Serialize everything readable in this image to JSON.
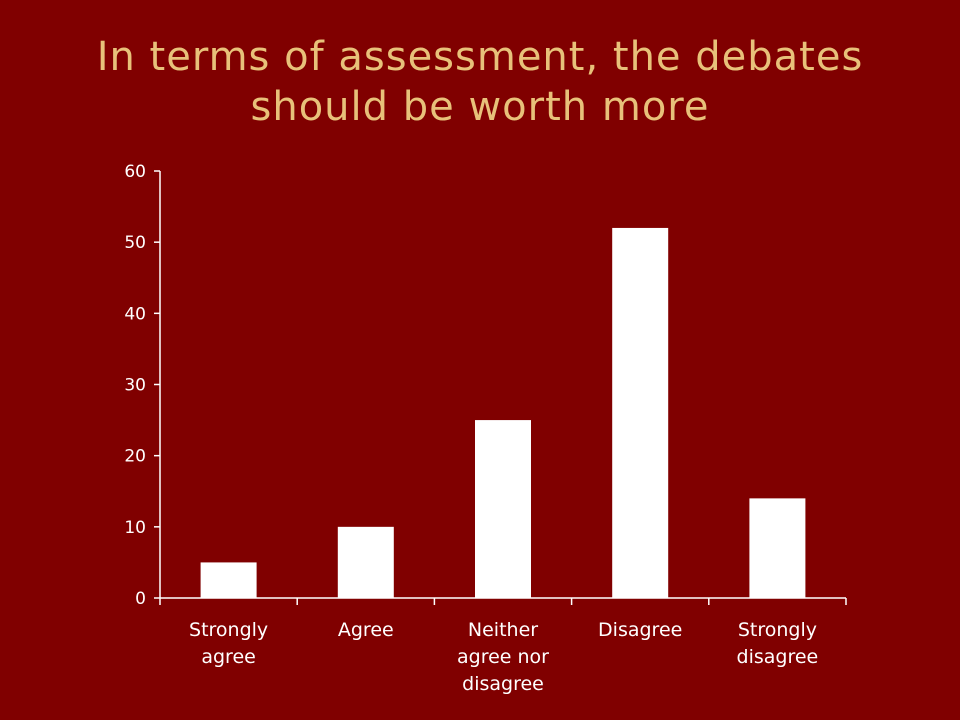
{
  "slide": {
    "title_line1": "In terms of assessment, the debates",
    "title_line2": "should be worth more",
    "background_color": "#800000",
    "title_color": "#E8C17A"
  },
  "chart_data": {
    "type": "bar",
    "title": "In terms of assessment, the debates should be worth more",
    "categories": [
      [
        "Strongly",
        "agree"
      ],
      [
        "Agree"
      ],
      [
        "Neither",
        "agree nor",
        "disagree"
      ],
      [
        "Disagree"
      ],
      [
        "Strongly",
        "disagree"
      ]
    ],
    "values": [
      5,
      10,
      25,
      52,
      14
    ],
    "ylim": [
      0,
      60
    ],
    "yticks": [
      0,
      10,
      20,
      30,
      40,
      50,
      60
    ],
    "xlabel": "",
    "ylabel": "",
    "grid": false,
    "legend": "none",
    "bar_color": "#ffffff",
    "axis_color": "#ffffff"
  }
}
